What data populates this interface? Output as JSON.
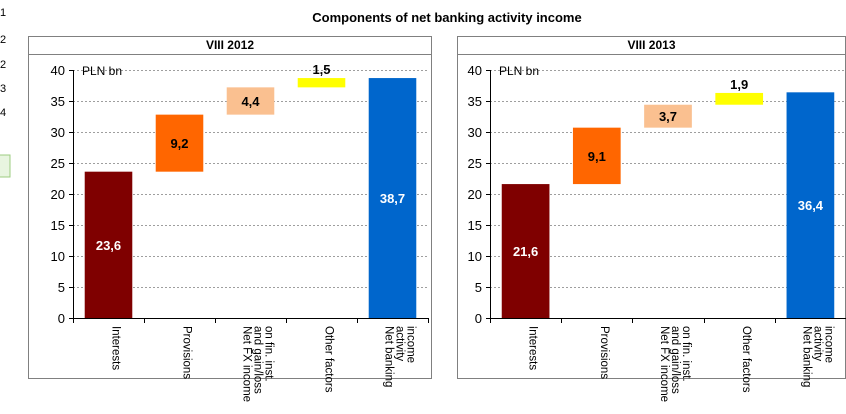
{
  "title": "Components of net banking activity income",
  "edge_fragments": {
    "left": [
      "1",
      "2",
      "2",
      "3",
      "4"
    ]
  },
  "chart_data": [
    {
      "type": "bar",
      "subtype": "waterfall",
      "panel_title": "VIII 2012",
      "unit_label": "PLN bn",
      "ylim": [
        0,
        40
      ],
      "yticks": [
        "0",
        "5",
        "10",
        "15",
        "20",
        "25",
        "30",
        "35",
        "40"
      ],
      "grid": true,
      "categories": [
        [
          "Interests"
        ],
        [
          "Provisions"
        ],
        [
          "Net FX income",
          "and gain/loss",
          "on fin. inst."
        ],
        [
          "Other factors"
        ],
        [
          "Net banking",
          "activity",
          "income"
        ]
      ],
      "bars": [
        {
          "base": 0,
          "value": 23.6,
          "label": "23,6",
          "color": "#7f0000",
          "label_color": "#ffffff"
        },
        {
          "base": 23.6,
          "value": 9.2,
          "label": "9,2",
          "color": "#ff6600",
          "label_color": "#000000"
        },
        {
          "base": 32.8,
          "value": 4.4,
          "label": "4,4",
          "color": "#fac090",
          "label_color": "#000000"
        },
        {
          "base": 37.2,
          "value": 1.5,
          "label": "1,5",
          "color": "#ffff00",
          "label_color": "#000000"
        },
        {
          "base": 0,
          "value": 38.7,
          "label": "38,7",
          "color": "#0066cc",
          "label_color": "#ffffff"
        }
      ]
    },
    {
      "type": "bar",
      "subtype": "waterfall",
      "panel_title": "VIII 2013",
      "unit_label": "PLN bn",
      "ylim": [
        0,
        40
      ],
      "yticks": [
        "0",
        "5",
        "10",
        "15",
        "20",
        "25",
        "30",
        "35",
        "40"
      ],
      "grid": true,
      "categories": [
        [
          "Interests"
        ],
        [
          "Provisions"
        ],
        [
          "Net FX income",
          "and gain/loss",
          "on fin. inst."
        ],
        [
          "Other factors"
        ],
        [
          "Net banking",
          "activity",
          "income"
        ]
      ],
      "bars": [
        {
          "base": 0,
          "value": 21.6,
          "label": "21,6",
          "color": "#7f0000",
          "label_color": "#ffffff"
        },
        {
          "base": 21.6,
          "value": 9.1,
          "label": "9,1",
          "color": "#ff6600",
          "label_color": "#000000"
        },
        {
          "base": 30.7,
          "value": 3.7,
          "label": "3,7",
          "color": "#fac090",
          "label_color": "#000000"
        },
        {
          "base": 34.4,
          "value": 1.9,
          "label": "1,9",
          "color": "#ffff00",
          "label_color": "#000000"
        },
        {
          "base": 0,
          "value": 36.4,
          "label": "36,4",
          "color": "#0066cc",
          "label_color": "#ffffff"
        }
      ]
    }
  ]
}
